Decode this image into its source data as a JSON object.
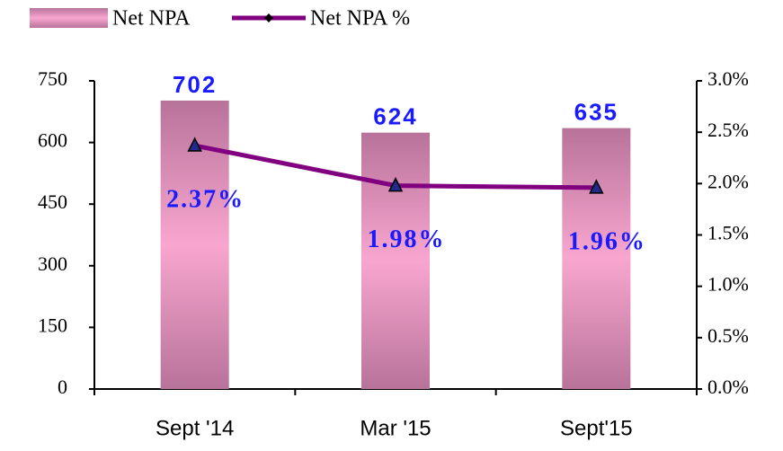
{
  "chart_data": {
    "type": "bar",
    "categories": [
      "Sept '14",
      "Mar '15",
      "Sept'15"
    ],
    "series": [
      {
        "name": "Net NPA",
        "type": "bar",
        "color": "#c07aa0",
        "values": [
          702,
          624,
          635
        ]
      },
      {
        "name": "Net NPA %",
        "type": "line",
        "axis": "y2",
        "color": "#800080",
        "marker_color": "#1f2a8a",
        "values": [
          2.37,
          1.98,
          1.96
        ],
        "value_labels": [
          "2.37%",
          "1.98%",
          "1.96%"
        ]
      }
    ],
    "ylim": [
      0,
      750
    ],
    "yticks": [
      0,
      150,
      300,
      450,
      600,
      750
    ],
    "y2lim": [
      0,
      3
    ],
    "y2ticks": [
      {
        "value": 0,
        "label": "0.0%"
      },
      {
        "value": 0.5,
        "label": "0.5%"
      },
      {
        "value": 1,
        "label": "1.0%"
      },
      {
        "value": 1.5,
        "label": "1.5%"
      },
      {
        "value": 2,
        "label": "2.0%"
      },
      {
        "value": 2.5,
        "label": "2.5%"
      },
      {
        "value": 3,
        "label": "3.0%"
      }
    ],
    "legend": "top",
    "label_color": "#1a1aff"
  }
}
